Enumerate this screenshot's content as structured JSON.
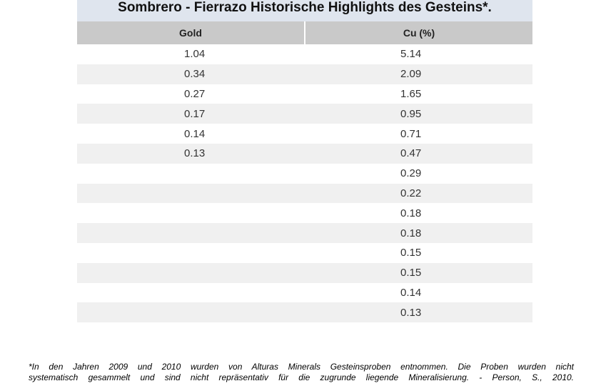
{
  "table": {
    "title": "Sombrero - Fierrazo Historische Highlights des Gesteins*.",
    "headers": {
      "gold": "Gold",
      "cu": "Cu (%)"
    },
    "rows": [
      {
        "gold": "1.04",
        "cu": "5.14"
      },
      {
        "gold": "0.34",
        "cu": "2.09"
      },
      {
        "gold": "0.27",
        "cu": "1.65"
      },
      {
        "gold": "0.17",
        "cu": "0.95"
      },
      {
        "gold": "0.14",
        "cu": "0.71"
      },
      {
        "gold": "0.13",
        "cu": "0.47"
      },
      {
        "gold": "",
        "cu": "0.29"
      },
      {
        "gold": "",
        "cu": "0.22"
      },
      {
        "gold": "",
        "cu": "0.18"
      },
      {
        "gold": "",
        "cu": "0.18"
      },
      {
        "gold": "",
        "cu": "0.15"
      },
      {
        "gold": "",
        "cu": "0.15"
      },
      {
        "gold": "",
        "cu": "0.14"
      },
      {
        "gold": "",
        "cu": "0.13"
      }
    ]
  },
  "footnote": {
    "line1": "*In den Jahren 2009 und 2010 wurden von Alturas Minerals Gesteinsproben entnommen. Die Proben wurden nicht",
    "line2": "systematisch gesammelt und sind nicht repräsentativ für die zugrunde liegende Mineralisierung. - Person, S., 2010."
  }
}
